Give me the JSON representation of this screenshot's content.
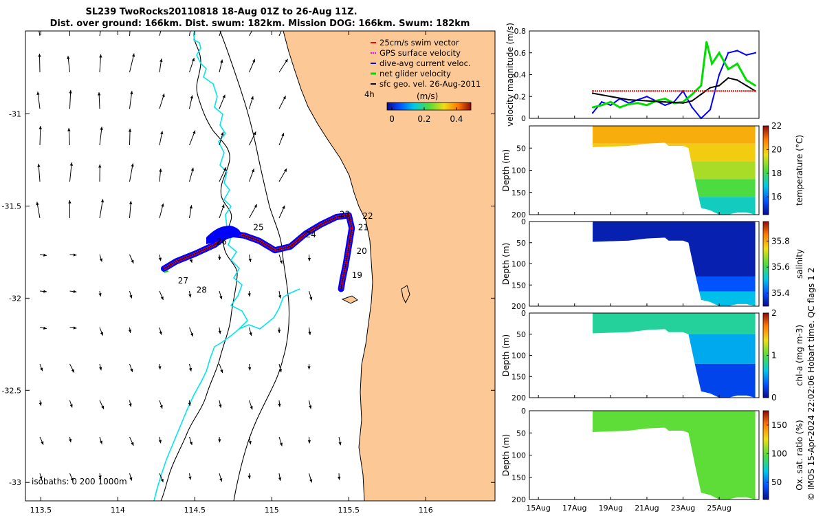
{
  "title_line1": "SL239 TwoRocks20110818 18-Aug 01Z to 26-Aug 11Z.",
  "title_line2": "Dist. over ground: 166km. Dist. swum: 182km. Mission DOG: 166km. Swum: 182km",
  "copyright": "© IMOS 15-Apr-2024 22:02:06 Hobart time. QC flags 1  2",
  "colors": {
    "land": "#fcc896",
    "isobath": "#000000",
    "coast_contour": "#00e5ee",
    "swim_vector": "#ff0000",
    "gps_velocity": "#ff00ff",
    "dive_avg": "#0000ff",
    "net_glider": "#00dd00",
    "sfc_geo": "#000000"
  },
  "map": {
    "x_ticks": [
      "113.5",
      "114",
      "114.5",
      "115",
      "115.5",
      "116"
    ],
    "y_ticks": [
      "-31",
      "-31.5",
      "-32",
      "-32.5",
      "-33"
    ],
    "xlim": [
      113.4,
      116.45
    ],
    "ylim": [
      -33.1,
      -30.55
    ],
    "isobaths_label": "isobaths: 0   200  1000m",
    "scale_label": "4h",
    "colorbar_unit": "(m/s)",
    "colorbar_ticks": [
      "0",
      "0.2",
      "0.4"
    ],
    "colorbar_range": [
      -0.03,
      0.49
    ],
    "legend": [
      "25cm/s swim vector",
      "GPS surface velocity",
      "dive-avg current veloc.",
      "net glider velocity",
      "sfc geo. vel. 26-Aug-2011"
    ],
    "day_labels": [
      {
        "text": "19",
        "lon": 115.52,
        "lat": -31.89
      },
      {
        "text": "20",
        "lon": 115.55,
        "lat": -31.76
      },
      {
        "text": "21",
        "lon": 115.56,
        "lat": -31.63
      },
      {
        "text": "22",
        "lon": 115.59,
        "lat": -31.57
      },
      {
        "text": "23",
        "lon": 115.44,
        "lat": -31.56
      },
      {
        "text": "24",
        "lon": 115.22,
        "lat": -31.67
      },
      {
        "text": "25",
        "lon": 114.88,
        "lat": -31.63
      },
      {
        "text": "26",
        "lon": 114.64,
        "lat": -31.71
      },
      {
        "text": "27",
        "lon": 114.39,
        "lat": -31.92
      },
      {
        "text": "28",
        "lon": 114.51,
        "lat": -31.97
      }
    ],
    "track": {
      "lon": [
        114.3,
        114.38,
        114.5,
        114.63,
        114.72,
        114.82,
        114.92,
        115.02,
        115.12,
        115.22,
        115.32,
        115.42,
        115.5,
        115.52,
        115.5,
        115.48,
        115.46,
        115.45
      ],
      "lat": [
        -31.84,
        -31.8,
        -31.76,
        -31.71,
        -31.65,
        -31.66,
        -31.69,
        -31.74,
        -31.72,
        -31.65,
        -31.6,
        -31.56,
        -31.55,
        -31.62,
        -31.72,
        -31.82,
        -31.9,
        -31.95
      ]
    }
  },
  "chart_data": [
    {
      "type": "line",
      "ylabel": "velocity magnitude (m/s)",
      "ylim": [
        0,
        0.8
      ],
      "xlim": [
        14.5,
        27.2
      ],
      "yticks": [
        "0",
        "0.2",
        "0.4",
        "0.6",
        "0.8"
      ],
      "series": [
        {
          "name": "dive-avg current veloc.",
          "color": "#0000ff",
          "x": [
            18.0,
            18.5,
            19.0,
            19.5,
            20.0,
            20.5,
            21.0,
            21.5,
            22.0,
            22.5,
            23.0,
            23.5,
            24.0,
            24.5,
            25.0,
            25.5,
            26.0,
            26.5,
            27.0
          ],
          "y": [
            0.05,
            0.15,
            0.12,
            0.18,
            0.14,
            0.17,
            0.2,
            0.16,
            0.12,
            0.15,
            0.25,
            0.1,
            0.0,
            0.08,
            0.4,
            0.6,
            0.62,
            0.58,
            0.6
          ]
        },
        {
          "name": "net glider velocity",
          "color": "#00dd00",
          "x": [
            18.0,
            18.5,
            19.0,
            19.5,
            20.0,
            20.5,
            21.0,
            21.5,
            22.0,
            22.5,
            23.0,
            23.5,
            24.0,
            24.3,
            24.6,
            25.0,
            25.5,
            26.0,
            26.5,
            27.0
          ],
          "y": [
            0.1,
            0.12,
            0.15,
            0.1,
            0.13,
            0.14,
            0.12,
            0.16,
            0.18,
            0.14,
            0.15,
            0.22,
            0.3,
            0.7,
            0.5,
            0.6,
            0.45,
            0.5,
            0.35,
            0.3
          ]
        },
        {
          "name": "sfc geo. vel. 26-Aug-2011",
          "color": "#000000",
          "x": [
            18.0,
            19.0,
            20.0,
            21.0,
            22.0,
            23.0,
            23.5,
            24.0,
            24.5,
            25.0,
            25.5,
            26.0,
            26.5,
            27.0
          ],
          "y": [
            0.23,
            0.2,
            0.17,
            0.16,
            0.15,
            0.14,
            0.16,
            0.22,
            0.28,
            0.3,
            0.37,
            0.35,
            0.3,
            0.25
          ]
        },
        {
          "name": "25cm/s swim vector",
          "color": "#ff0000",
          "x": [
            18.0,
            27.0
          ],
          "y": [
            0.25,
            0.25
          ]
        }
      ]
    },
    {
      "type": "heatmap",
      "ylabel": "Depth (m)",
      "colorbar_label": "temperature (°C)",
      "colorbar_ticks": [
        "16",
        "18",
        "20",
        "22"
      ],
      "crange": [
        14.5,
        22
      ],
      "ylim": [
        200,
        0
      ],
      "yticks": [
        "50",
        "100",
        "150",
        "200"
      ],
      "depth_x": [
        18.0,
        20.0,
        21.0,
        22.0,
        22.2,
        23.0,
        23.3,
        23.7,
        24.0,
        24.5,
        25.0,
        25.5,
        26.0,
        26.5,
        27.0
      ],
      "depth_y": [
        48,
        45,
        40,
        38,
        45,
        45,
        50,
        130,
        185,
        190,
        200,
        200,
        195,
        195,
        200
      ],
      "bands": [
        {
          "y0": 0,
          "y1": 40,
          "v": 20.2
        },
        {
          "y0": 40,
          "y1": 80,
          "v": 19.8
        },
        {
          "y0": 80,
          "y1": 120,
          "v": 19.0
        },
        {
          "y0": 120,
          "y1": 160,
          "v": 18.2
        },
        {
          "y0": 160,
          "y1": 200,
          "v": 17.2
        }
      ]
    },
    {
      "type": "heatmap",
      "ylabel": "Depth (m)",
      "colorbar_label": "salinity",
      "colorbar_ticks": [
        "35.4",
        "35.6",
        "35.8"
      ],
      "crange": [
        35.3,
        35.95
      ],
      "ylim": [
        200,
        0
      ],
      "yticks": [
        "0",
        "50",
        "100",
        "150",
        "200"
      ],
      "depth_x": [
        18.0,
        20.0,
        21.0,
        22.0,
        22.2,
        23.0,
        23.3,
        23.7,
        24.0,
        24.5,
        25.0,
        25.5,
        26.0,
        26.5,
        27.0
      ],
      "depth_y": [
        48,
        45,
        40,
        38,
        45,
        45,
        50,
        130,
        185,
        190,
        200,
        200,
        195,
        195,
        200
      ],
      "bands": [
        {
          "y0": 0,
          "y1": 130,
          "v": 35.33
        },
        {
          "y0": 130,
          "y1": 165,
          "v": 35.4
        },
        {
          "y0": 165,
          "y1": 200,
          "v": 35.5
        }
      ]
    },
    {
      "type": "heatmap",
      "ylabel": "Depth (m)",
      "colorbar_label": "chl-a (mg m-3)",
      "colorbar_ticks": [
        "0",
        "1",
        "2"
      ],
      "crange": [
        0,
        2
      ],
      "ylim": [
        200,
        0
      ],
      "yticks": [
        "0",
        "50",
        "100",
        "150",
        "200"
      ],
      "depth_x": [
        18.0,
        20.0,
        21.0,
        22.0,
        22.2,
        23.0,
        23.3,
        23.7,
        24.0,
        24.5,
        25.0,
        25.5,
        26.0,
        26.5,
        27.0
      ],
      "depth_y": [
        48,
        45,
        40,
        38,
        45,
        45,
        50,
        130,
        185,
        190,
        200,
        200,
        195,
        195,
        200
      ],
      "bands": [
        {
          "y0": 0,
          "y1": 50,
          "v": 0.8
        },
        {
          "y0": 50,
          "y1": 120,
          "v": 0.55
        },
        {
          "y0": 120,
          "y1": 200,
          "v": 0.25
        }
      ]
    },
    {
      "type": "heatmap",
      "ylabel": "Depth (m)",
      "colorbar_label": "Ox. sat. ratio (%)",
      "colorbar_ticks": [
        "50",
        "100",
        "150"
      ],
      "crange": [
        20,
        175
      ],
      "ylim": [
        200,
        0
      ],
      "yticks": [
        "0",
        "50",
        "100",
        "150",
        "200"
      ],
      "depth_x": [
        18.0,
        20.0,
        21.0,
        22.0,
        22.2,
        23.0,
        23.3,
        23.7,
        24.0,
        24.5,
        25.0,
        25.5,
        26.0,
        26.5,
        27.0
      ],
      "depth_y": [
        48,
        45,
        40,
        38,
        45,
        45,
        50,
        130,
        185,
        190,
        200,
        200,
        195,
        195,
        200
      ],
      "bands": [
        {
          "y0": 0,
          "y1": 200,
          "v": 100
        }
      ]
    }
  ],
  "time_axis": {
    "ticks": [
      {
        "label": "15Aug",
        "day": 15
      },
      {
        "label": "17Aug",
        "day": 17
      },
      {
        "label": "19Aug",
        "day": 19
      },
      {
        "label": "21Aug",
        "day": 21
      },
      {
        "label": "23Aug",
        "day": 23
      },
      {
        "label": "25Aug",
        "day": 25
      }
    ]
  }
}
